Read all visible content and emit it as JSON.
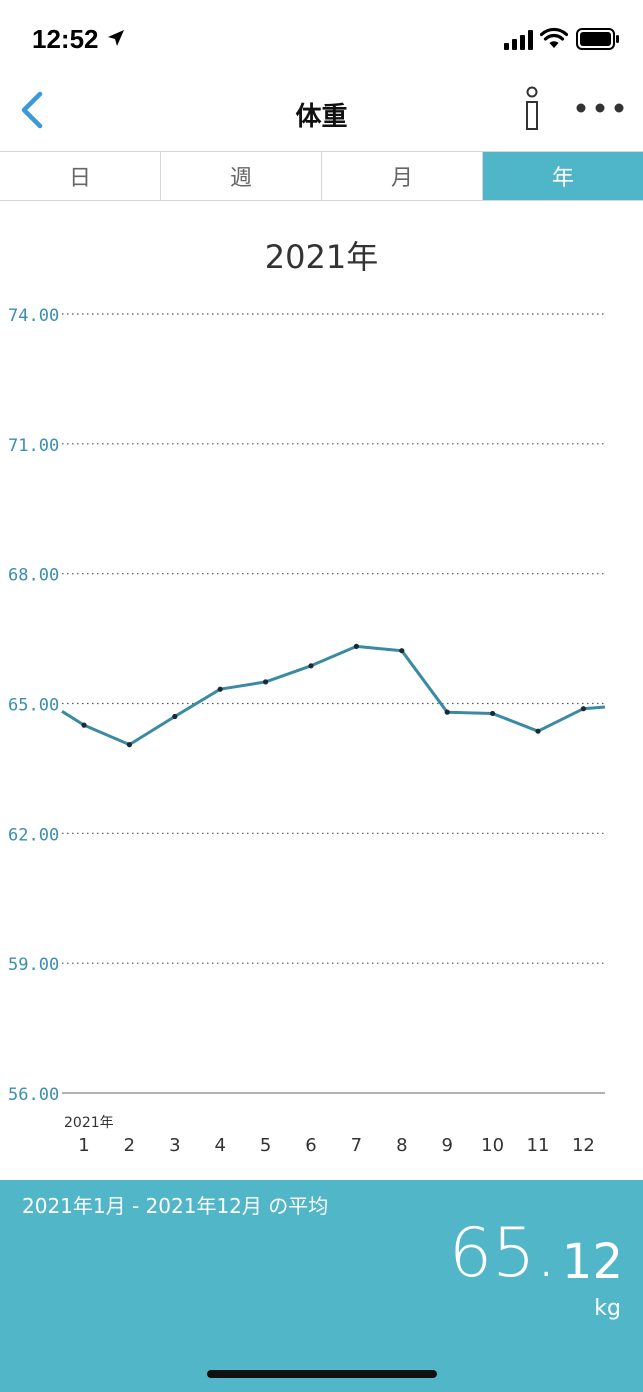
{
  "status_bar": {
    "time": "12:52"
  },
  "nav": {
    "title": "体重"
  },
  "tabs": [
    {
      "label": "日",
      "active": false
    },
    {
      "label": "週",
      "active": false
    },
    {
      "label": "月",
      "active": false
    },
    {
      "label": "年",
      "active": true
    }
  ],
  "chart_data": {
    "type": "line",
    "title": "2021年",
    "x_sublabel": "2021年",
    "categories": [
      "1",
      "2",
      "3",
      "4",
      "5",
      "6",
      "7",
      "8",
      "9",
      "10",
      "11",
      "12"
    ],
    "series": [
      {
        "values": [
          64.5,
          64.05,
          64.7,
          65.33,
          65.5,
          65.87,
          66.32,
          66.22,
          64.8,
          64.77,
          64.36,
          64.88
        ]
      }
    ],
    "start_value": 64.82,
    "end_value": 64.92,
    "y_ticks": [
      "74.00",
      "71.00",
      "68.00",
      "65.00",
      "62.00",
      "59.00",
      "56.00"
    ],
    "ylim": [
      56,
      74
    ],
    "grid": true,
    "colors": {
      "line": "#3b8aa3",
      "point": "#1c2b33",
      "axis": "#3a8fb0",
      "accent": "#52b6c9"
    }
  },
  "footer": {
    "period_label": "2021年1月 - 2021年12月 の平均",
    "average_int": "65.",
    "average_dec": "12",
    "unit": "kg"
  }
}
